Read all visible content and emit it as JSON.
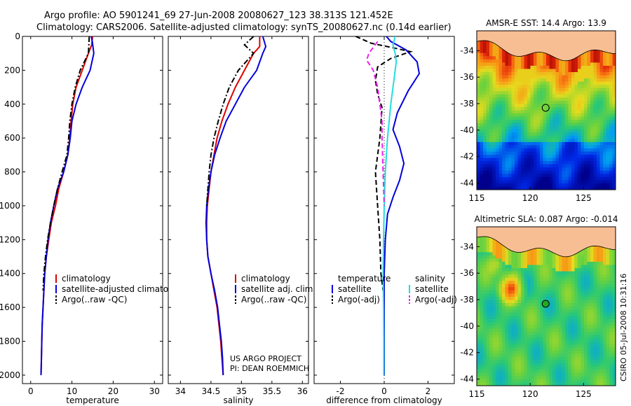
{
  "header": {
    "line1": "Argo profile: AO 5901241_69 27-Jun-2008 20080627_123 38.313S 121.452E",
    "line2": "Climatology: CARS2006. Satellite-adjusted climatology: synTS_20080627.nc (0.14d earlier)"
  },
  "credits": {
    "project": "US ARGO PROJECT",
    "pi": "PI: DEAN ROEMMICH",
    "stamp": "CSIRO 05-Jul-2008 10:31:16"
  },
  "colors": {
    "climatology": "#dd0000",
    "satellite": "#0000dd",
    "argo": "#000000",
    "sal_satellite": "#22dddd",
    "sal_argo": "#ee22ee",
    "land": "#f7be94"
  },
  "chart_data": [
    {
      "id": "temperature",
      "type": "line",
      "xlabel": "temperature",
      "ylabel": "",
      "xlim": [
        -2,
        32
      ],
      "ylim": [
        2050,
        0
      ],
      "xticks": [
        "0",
        "10",
        "20",
        "30"
      ],
      "yticks": [
        "0",
        "200",
        "400",
        "600",
        "800",
        "1000",
        "1200",
        "1400",
        "1600",
        "1800",
        "2000"
      ],
      "y_invert": true,
      "legend": {
        "location": "lower-right",
        "entries": [
          "climatology",
          "satellite-adjusted climatology",
          "Argo(..raw -QC)"
        ]
      },
      "series": [
        {
          "name": "climatology",
          "color_key": "climatology",
          "style": "solid",
          "points": [
            [
              15,
              0
            ],
            [
              14.8,
              50
            ],
            [
              14,
              100
            ],
            [
              12.5,
              200
            ],
            [
              11,
              300
            ],
            [
              10.2,
              400
            ],
            [
              9.8,
              500
            ],
            [
              9.5,
              600
            ],
            [
              9,
              700
            ],
            [
              8,
              800
            ],
            [
              6.8,
              900
            ],
            [
              6,
              1000
            ],
            [
              5,
              1100
            ],
            [
              4.4,
              1200
            ],
            [
              3.8,
              1300
            ],
            [
              3.4,
              1400
            ],
            [
              3.2,
              1500
            ],
            [
              3,
              1600
            ],
            [
              2.8,
              1700
            ],
            [
              2.7,
              1800
            ],
            [
              2.6,
              1900
            ],
            [
              2.5,
              2000
            ]
          ]
        },
        {
          "name": "satellite-adjusted climatology",
          "color_key": "satellite",
          "style": "solid",
          "points": [
            [
              14.7,
              0
            ],
            [
              15,
              40
            ],
            [
              15.3,
              100
            ],
            [
              14.4,
              200
            ],
            [
              12.5,
              300
            ],
            [
              11,
              400
            ],
            [
              10,
              500
            ],
            [
              9.6,
              600
            ],
            [
              9,
              700
            ],
            [
              8,
              800
            ],
            [
              6.5,
              900
            ],
            [
              5.6,
              1000
            ],
            [
              4.8,
              1100
            ],
            [
              4.2,
              1200
            ],
            [
              3.8,
              1300
            ],
            [
              3.4,
              1400
            ],
            [
              3.2,
              1500
            ],
            [
              3,
              1600
            ],
            [
              2.8,
              1700
            ],
            [
              2.7,
              1800
            ],
            [
              2.6,
              1900
            ],
            [
              2.5,
              2000
            ]
          ]
        },
        {
          "name": "Argo(..raw -QC)",
          "color_key": "argo",
          "style": "dashdot",
          "points": [
            [
              14.2,
              0
            ],
            [
              14,
              100
            ],
            [
              12,
              200
            ],
            [
              10.8,
              300
            ],
            [
              10,
              400
            ],
            [
              9.5,
              500
            ],
            [
              9.2,
              600
            ],
            [
              8.8,
              700
            ],
            [
              7.6,
              800
            ],
            [
              6.5,
              900
            ],
            [
              5.6,
              1000
            ],
            [
              4.8,
              1100
            ],
            [
              4.1,
              1200
            ],
            [
              3.6,
              1300
            ],
            [
              3.2,
              1400
            ],
            [
              3,
              1500
            ]
          ]
        }
      ]
    },
    {
      "id": "salinity",
      "type": "line",
      "xlabel": "salinity",
      "ylabel": "",
      "xlim": [
        33.8,
        36.1
      ],
      "ylim": [
        2050,
        0
      ],
      "xticks": [
        "34",
        "34.5",
        "35",
        "35.5",
        "36"
      ],
      "y_invert": true,
      "legend": {
        "location": "lower-right",
        "entries": [
          "climatology",
          "satellite adj. clim.",
          "Argo(..raw -QC)"
        ]
      },
      "series": [
        {
          "name": "climatology",
          "color_key": "climatology",
          "style": "solid",
          "points": [
            [
              35.3,
              0
            ],
            [
              35.3,
              60
            ],
            [
              35.2,
              100
            ],
            [
              35.05,
              200
            ],
            [
              34.9,
              300
            ],
            [
              34.78,
              400
            ],
            [
              34.68,
              500
            ],
            [
              34.6,
              600
            ],
            [
              34.55,
              700
            ],
            [
              34.5,
              800
            ],
            [
              34.47,
              900
            ],
            [
              34.44,
              1000
            ],
            [
              34.43,
              1100
            ],
            [
              34.43,
              1200
            ],
            [
              34.45,
              1300
            ],
            [
              34.5,
              1400
            ],
            [
              34.55,
              1500
            ],
            [
              34.6,
              1600
            ],
            [
              34.63,
              1700
            ],
            [
              34.66,
              1800
            ],
            [
              34.68,
              1900
            ],
            [
              34.7,
              2000
            ]
          ]
        },
        {
          "name": "satellite adj. clim.",
          "color_key": "satellite",
          "style": "solid",
          "points": [
            [
              35.35,
              0
            ],
            [
              35.4,
              60
            ],
            [
              35.35,
              100
            ],
            [
              35.25,
              200
            ],
            [
              35.05,
              300
            ],
            [
              34.9,
              400
            ],
            [
              34.75,
              500
            ],
            [
              34.65,
              600
            ],
            [
              34.56,
              700
            ],
            [
              34.5,
              800
            ],
            [
              34.46,
              900
            ],
            [
              34.43,
              1000
            ],
            [
              34.42,
              1100
            ],
            [
              34.43,
              1200
            ],
            [
              34.45,
              1300
            ],
            [
              34.5,
              1400
            ],
            [
              34.56,
              1500
            ],
            [
              34.61,
              1600
            ],
            [
              34.64,
              1700
            ],
            [
              34.67,
              1800
            ],
            [
              34.69,
              1900
            ],
            [
              34.7,
              2000
            ]
          ]
        },
        {
          "name": "Argo(..raw -QC)",
          "color_key": "argo",
          "style": "dashdot",
          "points": [
            [
              35.2,
              0
            ],
            [
              35.05,
              50
            ],
            [
              35.2,
              100
            ],
            [
              34.95,
              200
            ],
            [
              34.8,
              300
            ],
            [
              34.7,
              400
            ],
            [
              34.62,
              500
            ],
            [
              34.55,
              600
            ],
            [
              34.5,
              700
            ],
            [
              34.47,
              800
            ],
            [
              34.45,
              900
            ],
            [
              34.43,
              1000
            ]
          ]
        }
      ]
    },
    {
      "id": "difference",
      "type": "line",
      "xlabel": "difference from climatology",
      "ylabel": "",
      "xlim": [
        -3.2,
        3.2
      ],
      "ylim": [
        2050,
        0
      ],
      "xticks": [
        "-2",
        "0",
        "2"
      ],
      "y_invert": true,
      "zero_line": "dotted",
      "legend": {
        "location": "lower-center",
        "columns": [
          {
            "title": "temperature",
            "entries": [
              "satellite",
              "Argo(-adj)"
            ]
          },
          {
            "title": "salinity",
            "entries": [
              "satellite",
              "Argo(-adj)"
            ]
          }
        ]
      },
      "series": [
        {
          "name": "satellite",
          "group": "temperature",
          "color_key": "satellite",
          "style": "solid",
          "points": [
            [
              0.1,
              0
            ],
            [
              0.3,
              30
            ],
            [
              1.0,
              80
            ],
            [
              1.5,
              150
            ],
            [
              1.6,
              220
            ],
            [
              1.1,
              320
            ],
            [
              0.6,
              450
            ],
            [
              0.4,
              550
            ],
            [
              0.7,
              650
            ],
            [
              0.9,
              750
            ],
            [
              0.7,
              850
            ],
            [
              0.4,
              950
            ],
            [
              0.15,
              1050
            ],
            [
              0.05,
              1200
            ],
            [
              0,
              1400
            ],
            [
              0,
              1600
            ],
            [
              0,
              1800
            ],
            [
              0,
              2000
            ]
          ]
        },
        {
          "name": "Argo(-adj)",
          "group": "temperature",
          "color_key": "argo",
          "style": "dashed",
          "points": [
            [
              -1.3,
              0
            ],
            [
              -0.6,
              40
            ],
            [
              0.5,
              70
            ],
            [
              1.2,
              90
            ],
            [
              0.3,
              130
            ],
            [
              -0.3,
              180
            ],
            [
              -0.4,
              260
            ],
            [
              -0.3,
              340
            ],
            [
              -0.1,
              420
            ],
            [
              -0.2,
              600
            ],
            [
              -0.4,
              800
            ],
            [
              -0.3,
              1000
            ],
            [
              -0.2,
              1200
            ],
            [
              -0.15,
              1400
            ],
            [
              -0.05,
              1500
            ]
          ]
        },
        {
          "name": "satellite",
          "group": "salinity",
          "color_key": "sal_satellite",
          "style": "solid",
          "points": [
            [
              0.5,
              0
            ],
            [
              0.4,
              50
            ],
            [
              0.5,
              100
            ],
            [
              0.55,
              150
            ],
            [
              0.45,
              250
            ],
            [
              0.3,
              400
            ],
            [
              0.15,
              600
            ],
            [
              0.05,
              800
            ],
            [
              0,
              1000
            ],
            [
              -0.03,
              1200
            ],
            [
              -0.05,
              1400
            ],
            [
              -0.03,
              1600
            ],
            [
              -0.02,
              1800
            ],
            [
              -0.02,
              2000
            ]
          ]
        },
        {
          "name": "Argo(-adj)",
          "group": "salinity",
          "color_key": "sal_argo",
          "style": "dashed",
          "points": [
            [
              -0.3,
              30
            ],
            [
              -0.7,
              100
            ],
            [
              -0.8,
              140
            ],
            [
              -0.5,
              200
            ],
            [
              -0.3,
              300
            ],
            [
              -0.2,
              400
            ],
            [
              -0.1,
              500
            ],
            [
              -0.1,
              600
            ],
            [
              -0.05,
              800
            ],
            [
              0,
              1000
            ]
          ]
        }
      ]
    },
    {
      "id": "sst_map",
      "type": "heatmap",
      "title": "AMSR-E SST: 14.4 Argo: 13.9",
      "xlim": [
        115,
        128
      ],
      "ylim": [
        -44.5,
        -32.5
      ],
      "xticks": [
        "115",
        "120",
        "125"
      ],
      "yticks": [
        "-34",
        "-36",
        "-38",
        "-40",
        "-42",
        "-44"
      ],
      "float_position": [
        121.452,
        -38.313
      ],
      "float_marker_color": "#00dd00"
    },
    {
      "id": "sla_map",
      "type": "heatmap",
      "title": "Altimetric SLA: 0.087 Argo: -0.014",
      "xlim": [
        115,
        128
      ],
      "ylim": [
        -44.5,
        -32.5
      ],
      "xticks": [
        "115",
        "120",
        "125"
      ],
      "yticks": [
        "-34",
        "-36",
        "-38",
        "-40",
        "-42",
        "-44"
      ],
      "float_position": [
        121.452,
        -38.313
      ],
      "float_marker_color": "#22aa22"
    }
  ]
}
